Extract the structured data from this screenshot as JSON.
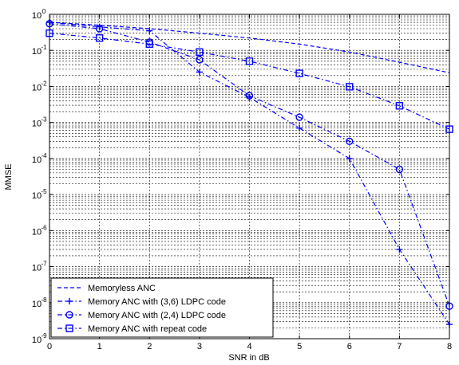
{
  "chart_data": {
    "type": "line",
    "title": "",
    "xlabel": "SNR in dB",
    "ylabel": "MMSE",
    "xlim": [
      0,
      8
    ],
    "ylim_log10": [
      -9,
      0
    ],
    "yscale": "log",
    "grid": "on (major and minor)",
    "legend_position": "bottom-left",
    "x": [
      0,
      1,
      2,
      3,
      4,
      5,
      6,
      7,
      8
    ],
    "x_tick_labels": [
      "0",
      "1",
      "2",
      "3",
      "4",
      "5",
      "6",
      "7",
      "8"
    ],
    "y_tick_exponents": [
      0,
      -1,
      -2,
      -3,
      -4,
      -5,
      -6,
      -7,
      -8,
      -9
    ],
    "y_tick_base": "10",
    "series": [
      {
        "name": "Memoryless ANC",
        "color": "#0000ff",
        "line_style": "dashed",
        "marker": "none",
        "values": [
          0.6,
          0.5,
          0.4,
          0.3,
          0.22,
          0.15,
          0.09,
          0.047,
          0.024
        ]
      },
      {
        "name": "Memory ANC with (3,6) LDPC code",
        "color": "#0000ff",
        "line_style": "dashdot",
        "marker": "plus",
        "values": [
          0.6,
          0.45,
          0.35,
          0.025,
          0.005,
          0.0007,
          0.0001,
          3e-07,
          2.5e-09
        ]
      },
      {
        "name": "Memory ANC with (2,4) LDPC code",
        "color": "#0000ff",
        "line_style": "dashdot",
        "marker": "circle",
        "values": [
          0.55,
          0.4,
          0.17,
          0.055,
          0.0055,
          0.0014,
          0.0003,
          5e-05,
          8e-09
        ]
      },
      {
        "name": "Memory ANC with repeat code",
        "color": "#0000ff",
        "line_style": "dashdot",
        "marker": "square",
        "values": [
          0.3,
          0.22,
          0.15,
          0.09,
          0.05,
          0.023,
          0.0098,
          0.0029,
          0.00065
        ]
      }
    ]
  }
}
